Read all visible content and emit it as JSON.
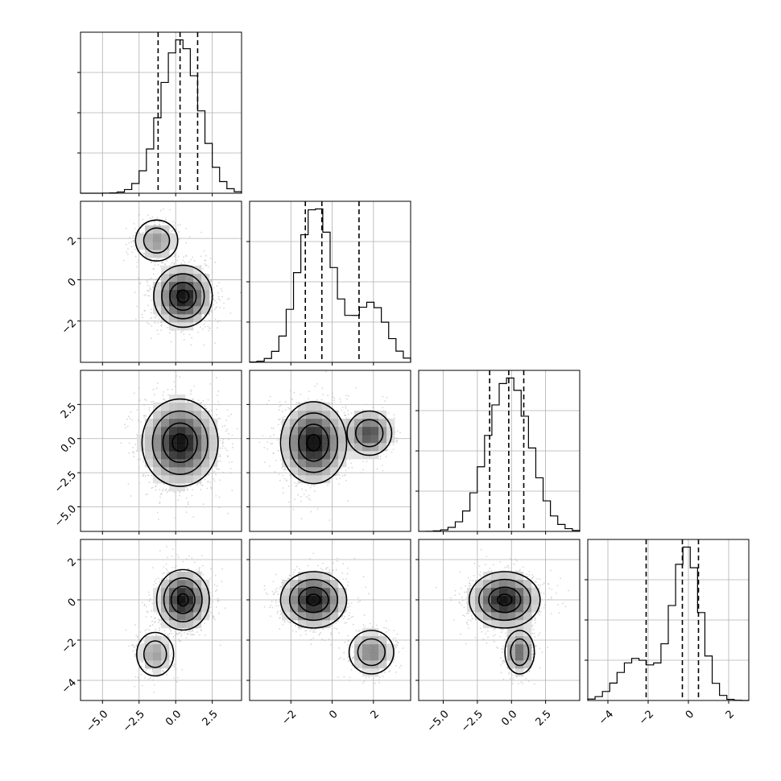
{
  "chart_data": {
    "type": "corner",
    "n_params": 4,
    "ranges": [
      [
        -6.5,
        4.5
      ],
      [
        -4.0,
        3.8
      ],
      [
        -6.8,
        5.0
      ],
      [
        -5.0,
        3.0
      ]
    ],
    "ticks": [
      {
        "values": [
          -5.0,
          -2.5,
          0.0,
          2.5
        ],
        "labels": [
          "−5.0",
          "−2.5",
          "0.0",
          "2.5"
        ]
      },
      {
        "values": [
          -2,
          0,
          2
        ],
        "labels": [
          "−2",
          "0",
          "2"
        ]
      },
      {
        "values": [
          -5.0,
          -2.5,
          0.0,
          2.5
        ],
        "labels": [
          "−5.0",
          "−2.5",
          "0.0",
          "2.5"
        ]
      },
      {
        "values": [
          -4,
          -2,
          0,
          2
        ],
        "labels": [
          "−4",
          "−2",
          "0",
          "2"
        ]
      }
    ],
    "quantiles": [
      [
        -1.2,
        0.3,
        1.5
      ],
      [
        -1.3,
        -0.5,
        1.3
      ],
      [
        -1.6,
        -0.2,
        0.9
      ],
      [
        -2.1,
        -0.3,
        0.5
      ]
    ],
    "marginals": [
      {
        "components": [
          {
            "w": 1.0,
            "mu": 0.3,
            "sd": 1.3
          }
        ]
      },
      {
        "components": [
          {
            "w": 0.75,
            "mu": -0.8,
            "sd": 0.85
          },
          {
            "w": 0.25,
            "mu": 1.9,
            "sd": 0.75
          }
        ]
      },
      {
        "components": [
          {
            "w": 1.0,
            "mu": -0.2,
            "sd": 1.55
          }
        ]
      },
      {
        "components": [
          {
            "w": 0.75,
            "mu": -0.1,
            "sd": 0.7
          },
          {
            "w": 0.25,
            "mu": -2.6,
            "sd": 0.85
          }
        ]
      }
    ],
    "joint": [
      {
        "x": 0,
        "y": 1,
        "modes": [
          {
            "w": 0.8,
            "mx": 0.5,
            "my": -0.8,
            "sx": 1.0,
            "sy": 0.75
          },
          {
            "w": 0.2,
            "mx": -1.3,
            "my": 1.9,
            "sx": 0.8,
            "sy": 0.55
          }
        ]
      },
      {
        "x": 0,
        "y": 2,
        "modes": [
          {
            "w": 1.0,
            "mx": 0.3,
            "my": -0.3,
            "sx": 1.3,
            "sy": 1.6
          }
        ]
      },
      {
        "x": 1,
        "y": 2,
        "modes": [
          {
            "w": 0.75,
            "mx": -0.9,
            "my": -0.3,
            "sx": 0.8,
            "sy": 1.5
          },
          {
            "w": 0.25,
            "mx": 1.8,
            "my": 0.4,
            "sx": 0.6,
            "sy": 0.9
          }
        ]
      },
      {
        "x": 0,
        "y": 3,
        "modes": [
          {
            "w": 0.8,
            "mx": 0.5,
            "my": 0.0,
            "sx": 0.9,
            "sy": 0.75
          },
          {
            "w": 0.2,
            "mx": -1.4,
            "my": -2.7,
            "sx": 0.7,
            "sy": 0.6
          }
        ]
      },
      {
        "x": 1,
        "y": 3,
        "modes": [
          {
            "w": 0.75,
            "mx": -0.9,
            "my": 0.0,
            "sx": 0.8,
            "sy": 0.7
          },
          {
            "w": 0.25,
            "mx": 1.9,
            "my": -2.6,
            "sx": 0.6,
            "sy": 0.6
          }
        ]
      },
      {
        "x": 2,
        "y": 3,
        "modes": [
          {
            "w": 0.8,
            "mx": -0.5,
            "my": 0.0,
            "sx": 1.3,
            "sy": 0.7
          },
          {
            "w": 0.2,
            "mx": 0.6,
            "my": -2.6,
            "sx": 0.6,
            "sy": 0.6
          }
        ]
      }
    ],
    "xlabel": "",
    "ylabel": "",
    "title": "",
    "grid": true,
    "legend": "none",
    "colors": {
      "density": "#000000",
      "points": "#b4b4b4",
      "frame": "#000000",
      "grid": "#b0b0b0"
    }
  }
}
